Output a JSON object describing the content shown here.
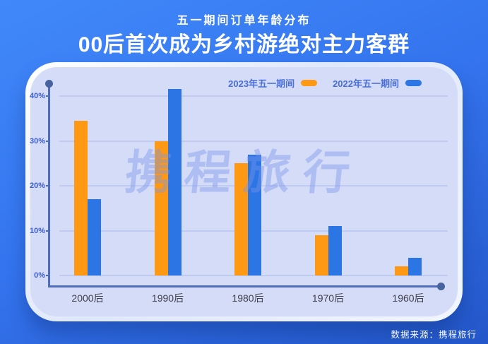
{
  "header": {
    "subtitle": "五一期间订单年龄分布",
    "title": "00后首次成为乡村游绝对主力客群"
  },
  "watermark": "携程旅行",
  "footer": {
    "source": "数据来源：携程旅行"
  },
  "colors": {
    "background_top": "#4189fa",
    "background_bottom": "#2457c9",
    "card_fill": "#d4dcf8",
    "series_2023": "#FF9914",
    "series_2022": "#2B76E4",
    "axis": "#4e6cba",
    "gridline": "#c0cbf1",
    "ytick_text": "#3e5ed4",
    "xtick_text": "#41414c",
    "legend_text": "#4a6fd8"
  },
  "chart_data": {
    "type": "bar",
    "title": "五一期间订单年龄分布",
    "categories": [
      "2000后",
      "1990后",
      "1980后",
      "1970后",
      "1960后"
    ],
    "series": [
      {
        "name": "2023年五一期间",
        "color": "#FF9914",
        "values": [
          34.5,
          30,
          25,
          9,
          2
        ]
      },
      {
        "name": "2022年五一期间",
        "color": "#2B76E4",
        "values": [
          17,
          41.5,
          27,
          11,
          4
        ]
      }
    ],
    "yticks": [
      "0%",
      "10%",
      "20%",
      "30%",
      "40%"
    ],
    "ytick_values": [
      0,
      10,
      20,
      30,
      40
    ],
    "ylim": [
      0,
      44
    ],
    "xlabel": "",
    "ylabel": "",
    "grid": true,
    "legend_position": "top-right"
  }
}
